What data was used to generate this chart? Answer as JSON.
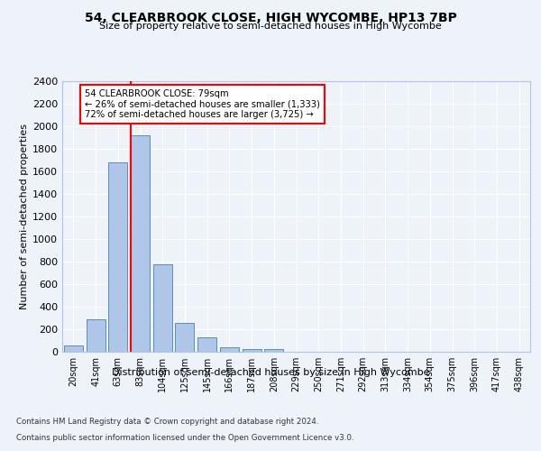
{
  "title": "54, CLEARBROOK CLOSE, HIGH WYCOMBE, HP13 7BP",
  "subtitle": "Size of property relative to semi-detached houses in High Wycombe",
  "xlabel": "Distribution of semi-detached houses by size in High Wycombe",
  "ylabel": "Number of semi-detached properties",
  "bar_labels": [
    "20sqm",
    "41sqm",
    "63sqm",
    "83sqm",
    "104sqm",
    "125sqm",
    "145sqm",
    "166sqm",
    "187sqm",
    "208sqm",
    "229sqm",
    "250sqm",
    "271sqm",
    "292sqm",
    "313sqm",
    "334sqm",
    "354sqm",
    "375sqm",
    "396sqm",
    "417sqm",
    "438sqm"
  ],
  "bar_values": [
    55,
    285,
    1680,
    1920,
    780,
    255,
    130,
    38,
    28,
    28,
    0,
    0,
    0,
    0,
    0,
    0,
    0,
    0,
    0,
    0,
    0
  ],
  "bar_color": "#aec6e8",
  "bar_edge_color": "#5b8db8",
  "ylim": [
    0,
    2400
  ],
  "yticks": [
    0,
    200,
    400,
    600,
    800,
    1000,
    1200,
    1400,
    1600,
    1800,
    2000,
    2200,
    2400
  ],
  "red_line_bin": 3,
  "annotation_title": "54 CLEARBROOK CLOSE: 79sqm",
  "annotation_line1": "← 26% of semi-detached houses are smaller (1,333)",
  "annotation_line2": "72% of semi-detached houses are larger (3,725) →",
  "footnote1": "Contains HM Land Registry data © Crown copyright and database right 2024.",
  "footnote2": "Contains public sector information licensed under the Open Government Licence v3.0.",
  "background_color": "#eef2f9",
  "plot_bg_color": "#eef2f9",
  "grid_color": "#ffffff"
}
